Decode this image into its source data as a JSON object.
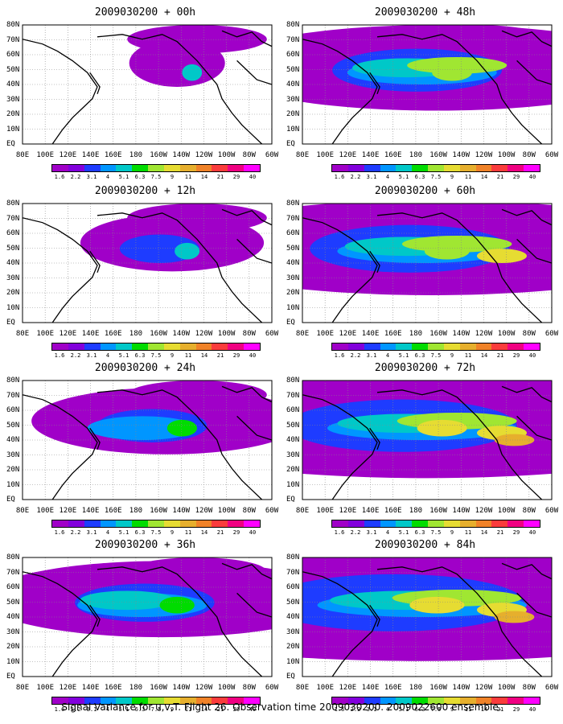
{
  "panels": [
    {
      "title": "2009030200 + 00h",
      "stage": 0
    },
    {
      "title": "2009030200 + 48h",
      "stage": 4
    },
    {
      "title": "2009030200 + 12h",
      "stage": 1
    },
    {
      "title": "2009030200 + 60h",
      "stage": 5
    },
    {
      "title": "2009030200 + 24h",
      "stage": 2
    },
    {
      "title": "2009030200 + 72h",
      "stage": 6
    },
    {
      "title": "2009030200 + 36h",
      "stage": 3
    },
    {
      "title": "2009030200 + 84h",
      "stage": 7
    }
  ],
  "lat_labels": [
    "80N",
    "70N",
    "60N",
    "50N",
    "40N",
    "30N",
    "20N",
    "10N",
    "EQ"
  ],
  "lon_labels": [
    "80E",
    "100E",
    "120E",
    "140E",
    "160E",
    "180",
    "160W",
    "140W",
    "120W",
    "100W",
    "80W",
    "60W"
  ],
  "colorbar": {
    "levels": [
      "1.6",
      "2.2",
      "3.1",
      "4",
      "5.1",
      "6.3",
      "7.5",
      "9",
      "11",
      "14",
      "21",
      "29",
      "40"
    ],
    "colors": [
      "#a000c8",
      "#8200dc",
      "#1e3cff",
      "#0096ff",
      "#00c8c8",
      "#00dc00",
      "#a0e632",
      "#e6dc32",
      "#e6af2d",
      "#f08228",
      "#fa3c3c",
      "#f00082",
      "#ff00ff"
    ]
  },
  "caption": "Signal Variance for u,v,T. Flight 26. Observation time 2009030200. 2009022600 ensemble."
}
